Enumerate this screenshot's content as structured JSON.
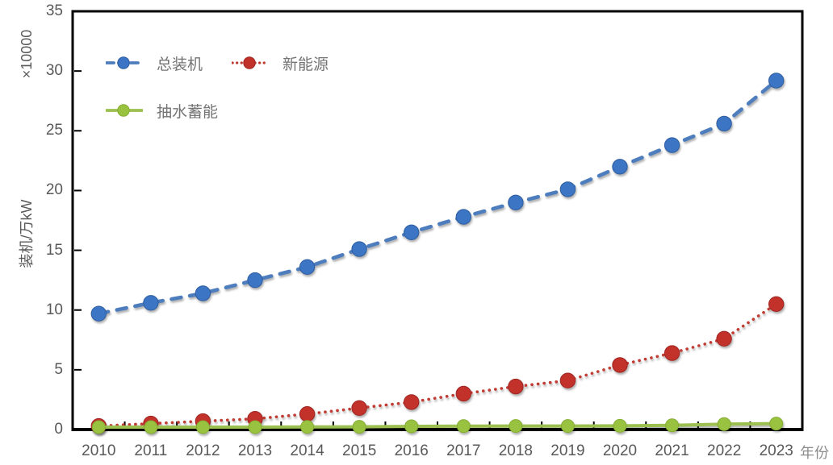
{
  "background_color": "#ffffff",
  "text_color": "#595959",
  "axis_color": "#000000",
  "chart_data": {
    "type": "line",
    "title": "",
    "xlabel": "年份",
    "ylabel": "装机/万kW",
    "ylabel_multiplier": "×10000",
    "x_labels": [
      "2010",
      "2011",
      "2012",
      "2013",
      "2014",
      "2015",
      "2016",
      "2017",
      "2018",
      "2019",
      "2020",
      "2021",
      "2022",
      "2023"
    ],
    "ylim": [
      0,
      35
    ],
    "yticks": [
      0,
      5,
      10,
      15,
      20,
      25,
      30,
      35
    ],
    "grid": false,
    "legend_position": "top-left-inside",
    "series": [
      {
        "key": "total-installed",
        "name": "总装机",
        "line_style": "dashed",
        "line_color": "#4E7DBD",
        "color": "#3B74C4",
        "marker_edge": "#2F5D9E",
        "values": [
          9.7,
          10.6,
          11.4,
          12.5,
          13.6,
          15.1,
          16.5,
          17.8,
          19.0,
          20.1,
          22.0,
          23.8,
          25.6,
          29.2
        ]
      },
      {
        "key": "new-energy",
        "name": "新能源",
        "line_style": "dotted",
        "line_color": "#C03A32",
        "color": "#C2302A",
        "marker_edge": "#9E2722",
        "values": [
          0.3,
          0.5,
          0.7,
          0.9,
          1.3,
          1.8,
          2.3,
          3.0,
          3.6,
          4.1,
          5.4,
          6.4,
          7.6,
          10.5
        ]
      },
      {
        "key": "pumped-storage",
        "name": "抽水蓄能",
        "line_style": "solid",
        "line_color": "#9CC050",
        "color": "#99C23F",
        "marker_edge": "#85AC31",
        "values": [
          0.2,
          0.2,
          0.2,
          0.2,
          0.22,
          0.23,
          0.27,
          0.29,
          0.3,
          0.3,
          0.31,
          0.36,
          0.45,
          0.5
        ]
      }
    ]
  }
}
